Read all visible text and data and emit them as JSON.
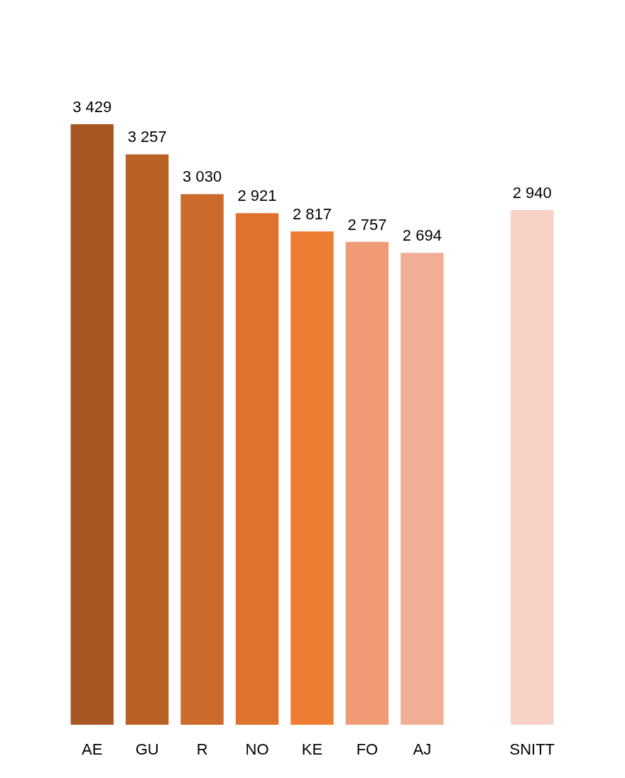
{
  "chart_data": {
    "type": "bar",
    "categories": [
      "AE",
      "GU",
      "R",
      "NO",
      "KE",
      "FO",
      "AJ",
      null,
      "SNITT"
    ],
    "values": [
      3429,
      3257,
      3030,
      2921,
      2817,
      2757,
      2694,
      null,
      2940
    ],
    "colors": [
      "#a65620",
      "#b96125",
      "#cb6a2a",
      "#de732e",
      "#ed7d31",
      "#f09b76",
      "#f2ae94",
      "#ffffff",
      "#f7d1c5"
    ],
    "value_labels": [
      "3 429",
      "3 257",
      "3 030",
      "2 921",
      "2 817",
      "2 757",
      "2 694",
      null,
      "2 940"
    ]
  }
}
